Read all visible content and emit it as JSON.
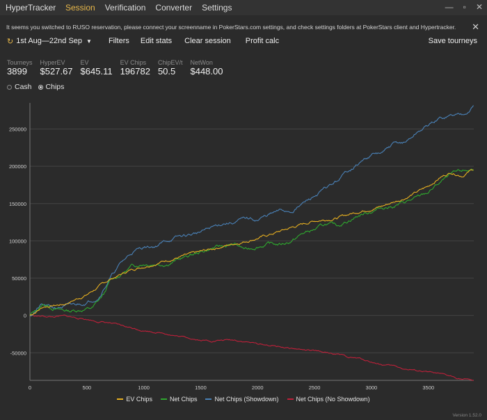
{
  "app": {
    "title": "HyperTracker",
    "version": "Version 1.52.0",
    "nav": [
      {
        "label": "Session",
        "active": true
      },
      {
        "label": "Verification",
        "active": false
      },
      {
        "label": "Converter",
        "active": false
      },
      {
        "label": "Settings",
        "active": false
      }
    ],
    "window_controls": {
      "minimize": "—",
      "maximize": "▫",
      "close": "✕"
    }
  },
  "notice": {
    "text": "It seems you switched to RUSO reservation, please connect your screenname in PokerStars.com settings, and check settings folders at PokerStars client and Hypertracker.",
    "close": "✕"
  },
  "toolbar": {
    "date_range": "1st Aug—22nd Sep",
    "filters": "Filters",
    "edit_stats": "Edit stats",
    "clear_session": "Clear session",
    "profit_calc": "Profit calc",
    "save_tourneys": "Save tourneys"
  },
  "stats": [
    {
      "label": "Tourneys",
      "value": "3899"
    },
    {
      "label": "HyperEV",
      "value": "$527.67"
    },
    {
      "label": "EV",
      "value": "$645.11"
    },
    {
      "label": "EV Chips",
      "value": "196782"
    },
    {
      "label": "ChipEV/t",
      "value": "50.5"
    },
    {
      "label": "NetWon",
      "value": "$448.00"
    }
  ],
  "mode": {
    "cash": "Cash",
    "chips": "Chips",
    "selected": "chips"
  },
  "colors": {
    "accent": "#e8b84a",
    "ev_chips": "#e8b020",
    "net_chips": "#2fa82f",
    "showdown": "#4a82b8",
    "no_showdown": "#c0203a",
    "grid": "#444444",
    "axis_text": "#cfcfcf"
  },
  "chart_data": {
    "type": "line",
    "x_range": [
      0,
      3899
    ],
    "y_range": [
      -87000,
      285000
    ],
    "x_ticks": [
      0,
      500,
      1000,
      1500,
      2000,
      2500,
      3000,
      3500
    ],
    "y_ticks": [
      -50000,
      0,
      50000,
      100000,
      150000,
      200000,
      250000
    ],
    "grid": true,
    "legend_position": "bottom",
    "series": [
      {
        "name": "EV Chips",
        "color": "#e8b020",
        "noise": 2200,
        "seed": 7,
        "x": [
          0,
          120,
          300,
          500,
          700,
          900,
          1100,
          1300,
          1500,
          1700,
          1900,
          2100,
          2300,
          2500,
          2700,
          2900,
          3100,
          3300,
          3500,
          3600,
          3700,
          3800,
          3899
        ],
        "y": [
          0,
          12000,
          15000,
          28000,
          48000,
          62000,
          70000,
          78000,
          85000,
          93000,
          100000,
          108000,
          118000,
          127000,
          131000,
          140000,
          147000,
          158000,
          173000,
          185000,
          192000,
          188000,
          196782
        ]
      },
      {
        "name": "Net Chips",
        "color": "#2fa82f",
        "noise": 3200,
        "seed": 13,
        "x": [
          0,
          120,
          250,
          350,
          450,
          550,
          650,
          700,
          800,
          900,
          1000,
          1100,
          1200,
          1300,
          1400,
          1500,
          1600,
          1700,
          1800,
          1900,
          2000,
          2100,
          2200,
          2300,
          2400,
          2500,
          2600,
          2700,
          2800,
          2900,
          3000,
          3100,
          3200,
          3300,
          3400,
          3500,
          3600,
          3700,
          3800,
          3899
        ],
        "y": [
          0,
          15000,
          8000,
          6000,
          8000,
          10000,
          28000,
          45000,
          55000,
          66000,
          70000,
          70000,
          70000,
          75000,
          80000,
          85000,
          90000,
          93000,
          95000,
          88000,
          93000,
          96000,
          95000,
          100000,
          110000,
          115000,
          122000,
          120000,
          128000,
          135000,
          140000,
          145000,
          147000,
          152000,
          157000,
          165000,
          178000,
          188000,
          193000,
          196000
        ]
      },
      {
        "name": "Net Chips (Showdown)",
        "color": "#4a82b8",
        "noise": 3000,
        "seed": 21,
        "x": [
          0,
          100,
          200,
          300,
          400,
          500,
          600,
          700,
          800,
          900,
          1000,
          1100,
          1200,
          1300,
          1400,
          1500,
          1600,
          1700,
          1800,
          1900,
          2000,
          2100,
          2200,
          2300,
          2400,
          2500,
          2600,
          2700,
          2800,
          2900,
          3000,
          3100,
          3200,
          3300,
          3400,
          3500,
          3600,
          3700,
          3800,
          3899
        ],
        "y": [
          0,
          14000,
          10000,
          12000,
          14000,
          18000,
          25000,
          50000,
          70000,
          85000,
          92000,
          93000,
          100000,
          105000,
          108000,
          112000,
          118000,
          124000,
          125000,
          130000,
          128000,
          135000,
          140000,
          140000,
          150000,
          160000,
          170000,
          180000,
          195000,
          205000,
          215000,
          218000,
          230000,
          232000,
          245000,
          255000,
          264000,
          268000,
          270000,
          282000
        ]
      },
      {
        "name": "Net Chips (No Showdown)",
        "color": "#c0203a",
        "noise": 1400,
        "seed": 33,
        "x": [
          0,
          200,
          300,
          400,
          500,
          600,
          700,
          800,
          900,
          1000,
          1100,
          1200,
          1300,
          1400,
          1500,
          1600,
          1700,
          1800,
          1900,
          2000,
          2100,
          2200,
          2300,
          2400,
          2500,
          2600,
          2700,
          2800,
          2900,
          3000,
          3100,
          3200,
          3300,
          3400,
          3500,
          3600,
          3700,
          3800,
          3899
        ],
        "y": [
          0,
          -2000,
          -1000,
          -3000,
          -5000,
          -8000,
          -10000,
          -14000,
          -17000,
          -20000,
          -22000,
          -24000,
          -28000,
          -30000,
          -33000,
          -34000,
          -33000,
          -33000,
          -35000,
          -38000,
          -40000,
          -42000,
          -44000,
          -46000,
          -48000,
          -50000,
          -52000,
          -56000,
          -58000,
          -62000,
          -66000,
          -68000,
          -72000,
          -74000,
          -76000,
          -79000,
          -82000,
          -85000,
          -87000
        ]
      }
    ]
  }
}
